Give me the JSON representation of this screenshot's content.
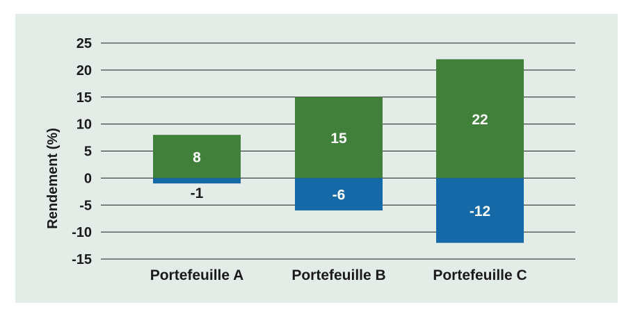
{
  "colors": {
    "panel_bg": "#e4ece8",
    "positive": "#41803b",
    "negative": "#1569a6",
    "grid": "#1a1a1a",
    "text": "#1a1a1a",
    "label_on_bar": "#ffffff"
  },
  "chart_data": {
    "type": "bar",
    "stacked": true,
    "title": "",
    "xlabel": "",
    "ylabel": "Rendement (%)",
    "ylim": [
      -15,
      25
    ],
    "yticks": [
      25,
      20,
      15,
      10,
      5,
      0,
      -5,
      -10,
      -15
    ],
    "ytick_labels": [
      "25",
      "20",
      "15",
      "10",
      "5",
      "0",
      "-5",
      "-10",
      "-15"
    ],
    "grid": true,
    "categories": [
      "Portefeuille A",
      "Portefeuille B",
      "Portefeuille C"
    ],
    "series": [
      {
        "values": [
          8,
          15,
          22
        ],
        "labels": [
          "8",
          "15",
          "22"
        ]
      },
      {
        "values": [
          -1,
          -6,
          -12
        ],
        "labels": [
          "-1",
          "-6",
          "-12"
        ]
      }
    ]
  }
}
